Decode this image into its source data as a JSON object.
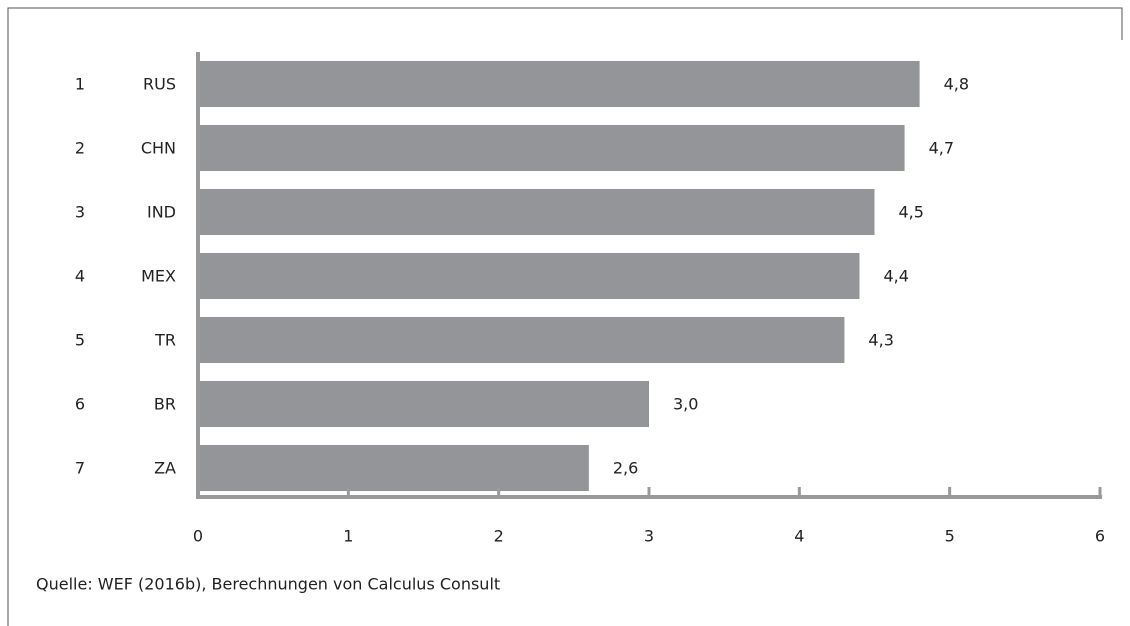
{
  "chart_data": {
    "type": "bar",
    "orientation": "horizontal",
    "ranks": [
      1,
      2,
      3,
      4,
      5,
      6,
      7
    ],
    "categories": [
      "RUS",
      "CHN",
      "IND",
      "MEX",
      "TR",
      "BR",
      "ZA"
    ],
    "values": [
      4.8,
      4.7,
      4.5,
      4.4,
      4.3,
      3.0,
      2.6
    ],
    "value_labels": [
      "4,8",
      "4,7",
      "4,5",
      "4,4",
      "4,3",
      "3,0",
      "2,6"
    ],
    "color": "#939598",
    "xlim": [
      0,
      6
    ],
    "xticks": [
      0,
      1,
      2,
      3,
      4,
      5,
      6
    ],
    "source": "Quelle: WEF (2016b), Berechnungen von Calculus Consult"
  }
}
